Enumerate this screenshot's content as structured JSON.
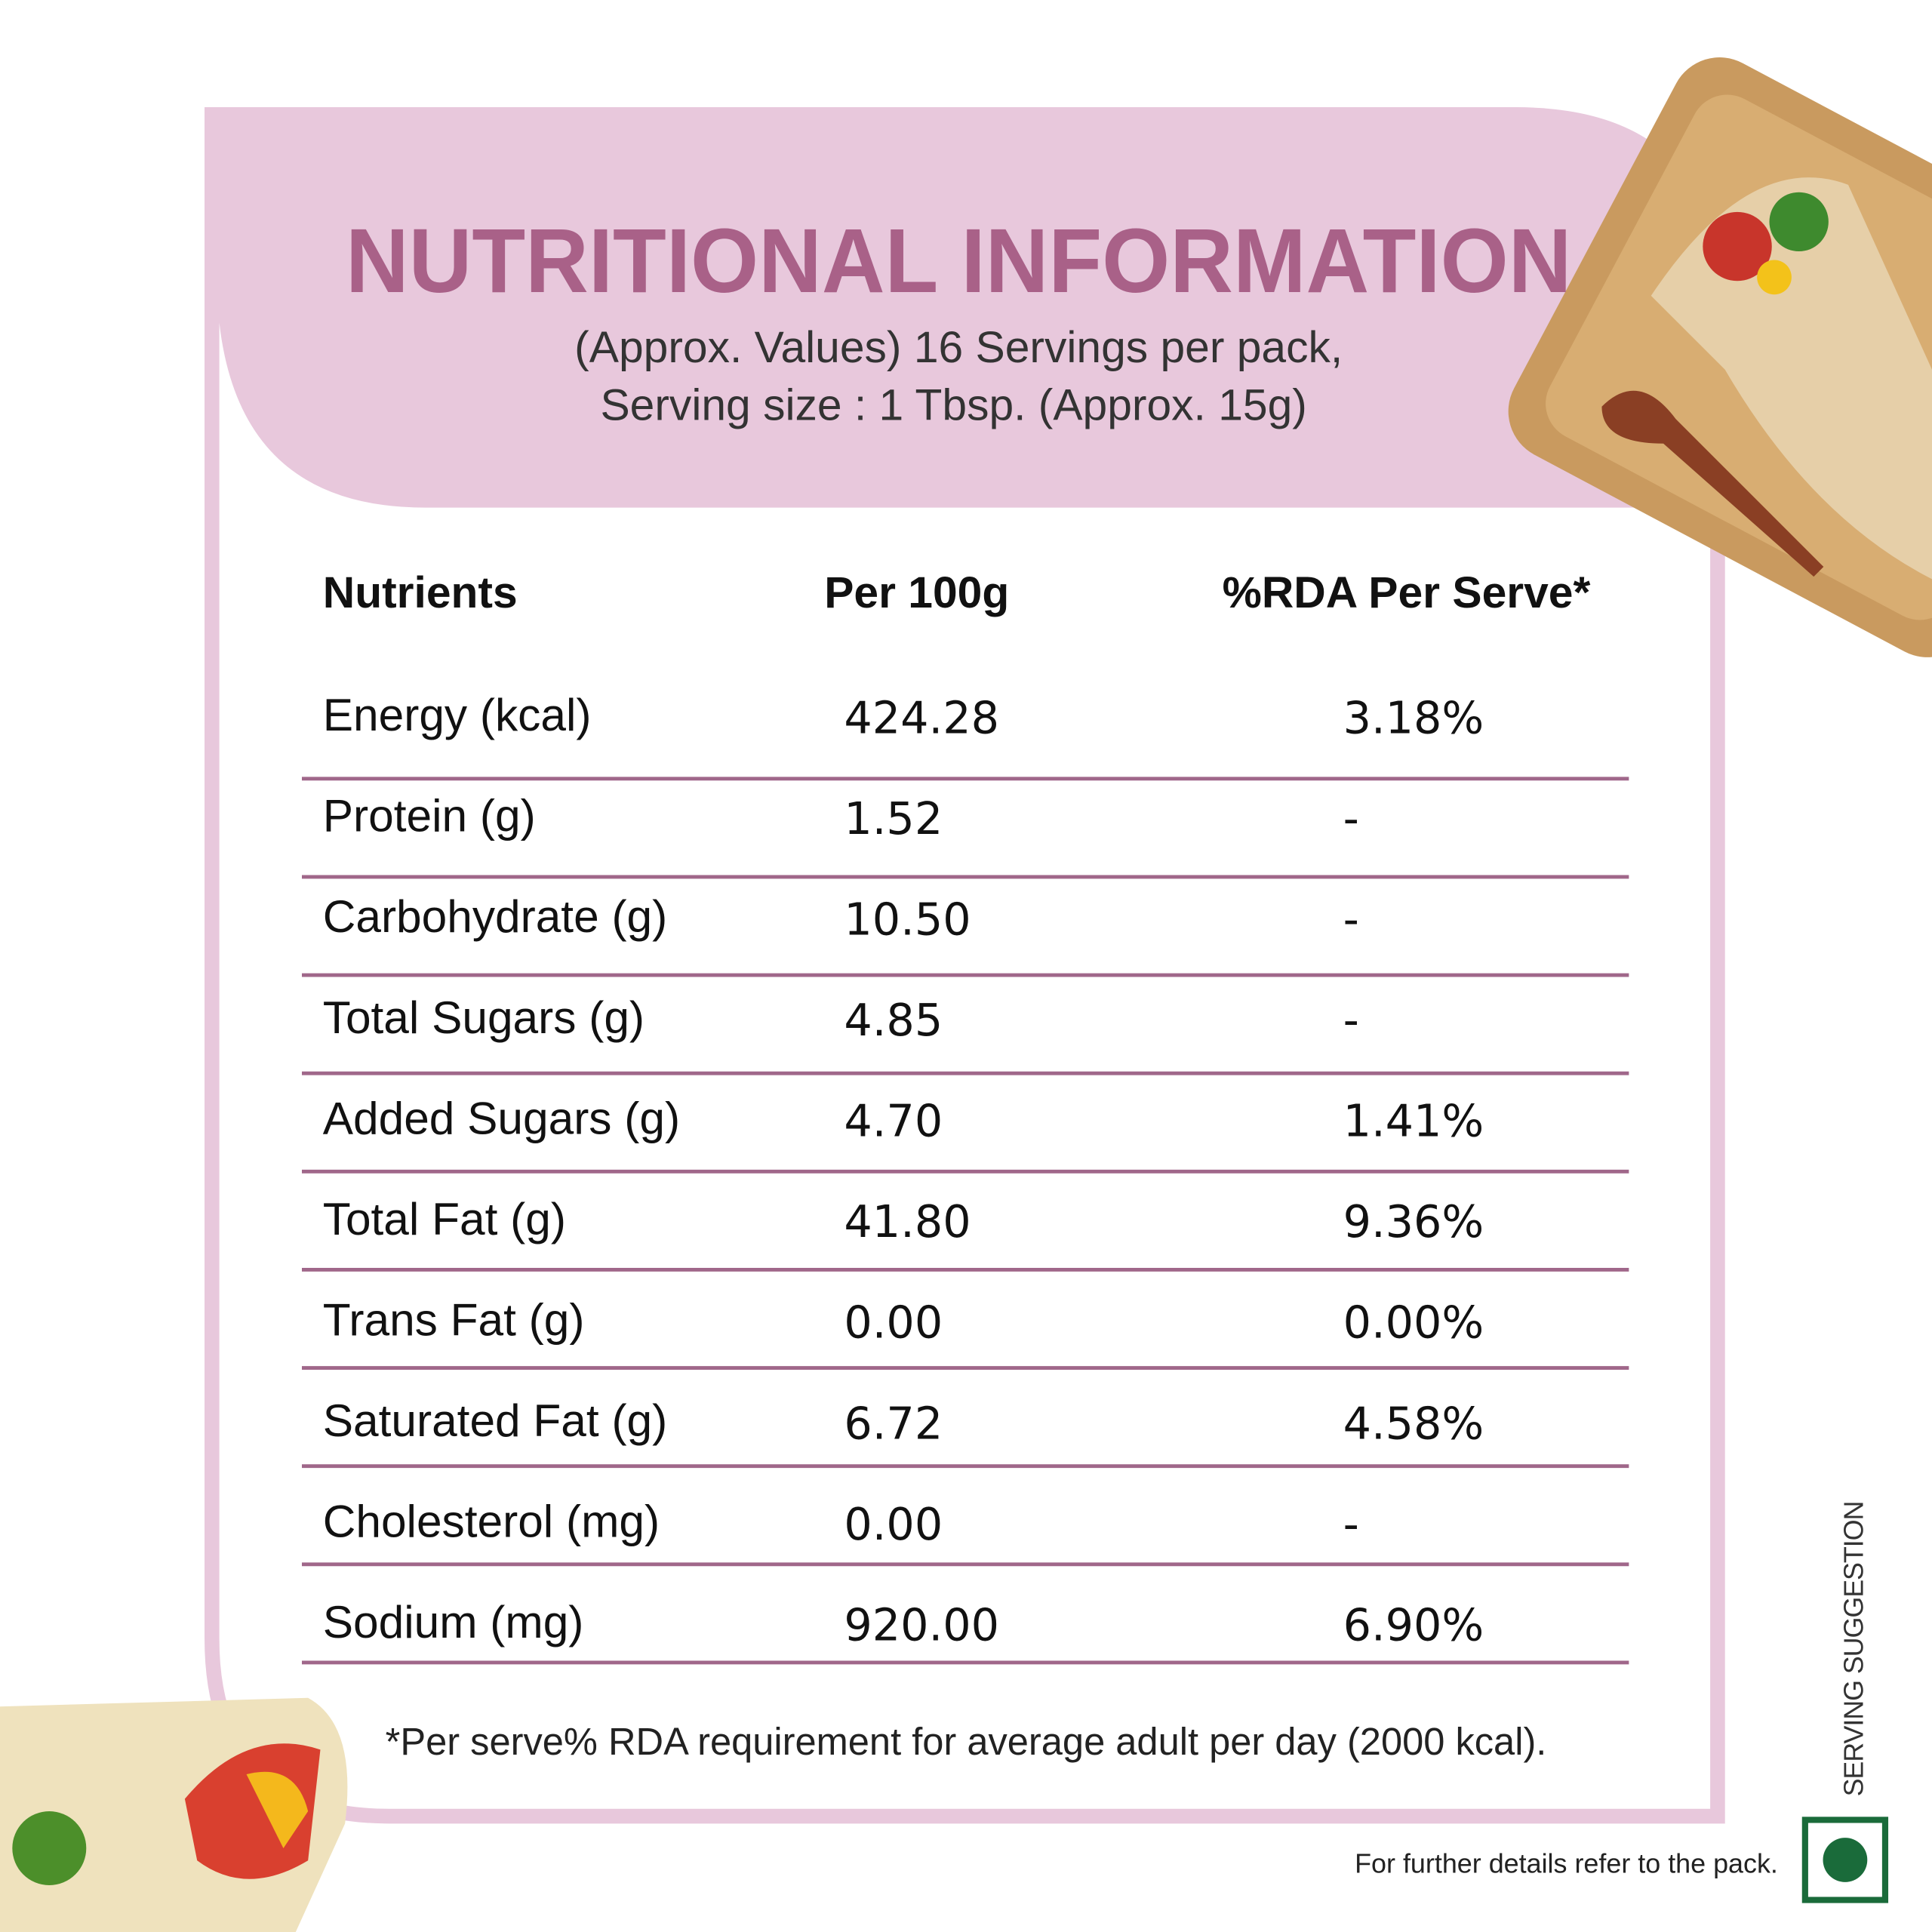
{
  "header": {
    "title": "NUTRITIONAL INFORMATION",
    "subtitle_lines": [
      "(Approx. Values) 16 Servings per pack,",
      "Serving size : 1 Tbsp. (Approx. 15g)"
    ]
  },
  "table": {
    "columns": [
      "Nutrients",
      "Per 100g",
      "%RDA Per Serve*"
    ],
    "rows": [
      [
        "Energy (kcal)",
        "424.28",
        "3.18%"
      ],
      [
        "Protein (g)",
        "1.52",
        "-"
      ],
      [
        "Carbohydrate (g)",
        "10.50",
        "-"
      ],
      [
        "Total Sugars (g)",
        "4.85",
        "-"
      ],
      [
        "Added Sugars (g)",
        "4.70",
        "1.41%"
      ],
      [
        "Total Fat (g)",
        "41.80",
        "9.36%"
      ],
      [
        "Trans Fat (g)",
        "0.00",
        "0.00%"
      ],
      [
        "Saturated Fat (g)",
        "6.72",
        "4.58%"
      ],
      [
        "Cholesterol (mg)",
        "0.00",
        "-"
      ],
      [
        "Sodium (mg)",
        "920.00",
        "6.90%"
      ]
    ]
  },
  "footnote": "*Per serve% RDA requirement for average adult per day (2000 kcal).",
  "side_label": "SERVING SUGGESTION",
  "footer_note": "For further details refer to the pack."
}
